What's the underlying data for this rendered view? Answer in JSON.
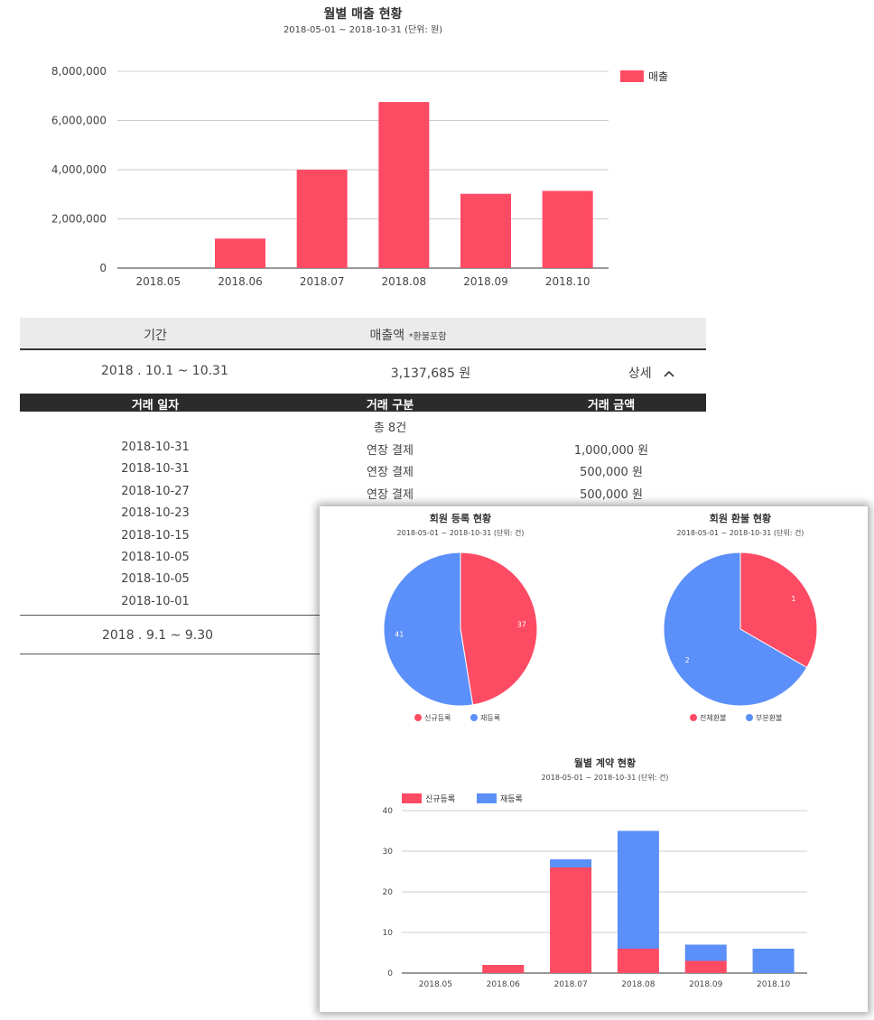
{
  "colors": {
    "red": "#fe4b64",
    "blue": "#5b8ff9"
  },
  "sales_chart": {
    "title": "월별 매출 현황",
    "subtitle": "2018-05-01 ~ 2018-10-31 (단위: 원)"
  },
  "chart_data": [
    {
      "type": "bar",
      "title": "월별 매출 현황",
      "subtitle": "2018-05-01 ~ 2018-10-31 (단위: 원)",
      "categories": [
        "2018.05",
        "2018.06",
        "2018.07",
        "2018.08",
        "2018.09",
        "2018.10"
      ],
      "series": [
        {
          "name": "매출",
          "values": [
            0,
            1200000,
            4000000,
            6750000,
            3020000,
            3137685
          ]
        }
      ],
      "ylim": [
        0,
        8000000
      ],
      "yticks": [
        "0",
        "2,000,000",
        "4,000,000",
        "6,000,000",
        "8,000,000"
      ],
      "grid": true,
      "legend": "right"
    },
    {
      "type": "pie",
      "title": "회원 등록 현황",
      "subtitle": "2018-05-01 ~ 2018-10-31 (단위: 건)",
      "labels": [
        "신규등록",
        "재등록"
      ],
      "values": [
        37,
        41
      ],
      "legend": "bottom"
    },
    {
      "type": "pie",
      "title": "회원 환불 현황",
      "subtitle": "2018-05-01 ~ 2018-10-31 (단위: 건)",
      "labels": [
        "전체환불",
        "부분환불"
      ],
      "values": [
        1,
        2
      ],
      "legend": "bottom"
    },
    {
      "type": "bar",
      "stacked": true,
      "title": "월별 계약 현황",
      "subtitle": "2018-05-01 ~ 2018-10-31 (단위: 건)",
      "categories": [
        "2018.05",
        "2018.06",
        "2018.07",
        "2018.08",
        "2018.09",
        "2018.10"
      ],
      "series": [
        {
          "name": "신규등록",
          "values": [
            0,
            2,
            26,
            6,
            3,
            0
          ]
        },
        {
          "name": "재등록",
          "values": [
            0,
            0,
            2,
            29,
            4,
            6
          ]
        }
      ],
      "ylim": [
        0,
        40
      ],
      "yticks": [
        "0",
        "10",
        "20",
        "30",
        "40"
      ],
      "grid": true,
      "legend": "top-left"
    }
  ],
  "sales_table": {
    "headers": [
      "기간",
      "매출액"
    ],
    "header_note": "*환불포함",
    "periods": [
      {
        "label": "2018 . 10.1 ~ 10.31",
        "amount": "3,137,685 원",
        "detail": "상세"
      },
      {
        "label": "2018 . 9.1 ~ 9.30"
      }
    ],
    "detail_headers": [
      "거래 일자",
      "거래 구분",
      "거래 금액"
    ],
    "total_count": "총 8건",
    "transactions": [
      {
        "date": "2018-10-31",
        "type": "연장 결제",
        "amount": "1,000,000 원"
      },
      {
        "date": "2018-10-31",
        "type": "연장 결제",
        "amount": "500,000 원"
      },
      {
        "date": "2018-10-27",
        "type": "연장 결제",
        "amount": "500,000 원"
      },
      {
        "date": "2018-10-23"
      },
      {
        "date": "2018-10-15"
      },
      {
        "date": "2018-10-05"
      },
      {
        "date": "2018-10-05"
      },
      {
        "date": "2018-10-01"
      }
    ]
  }
}
